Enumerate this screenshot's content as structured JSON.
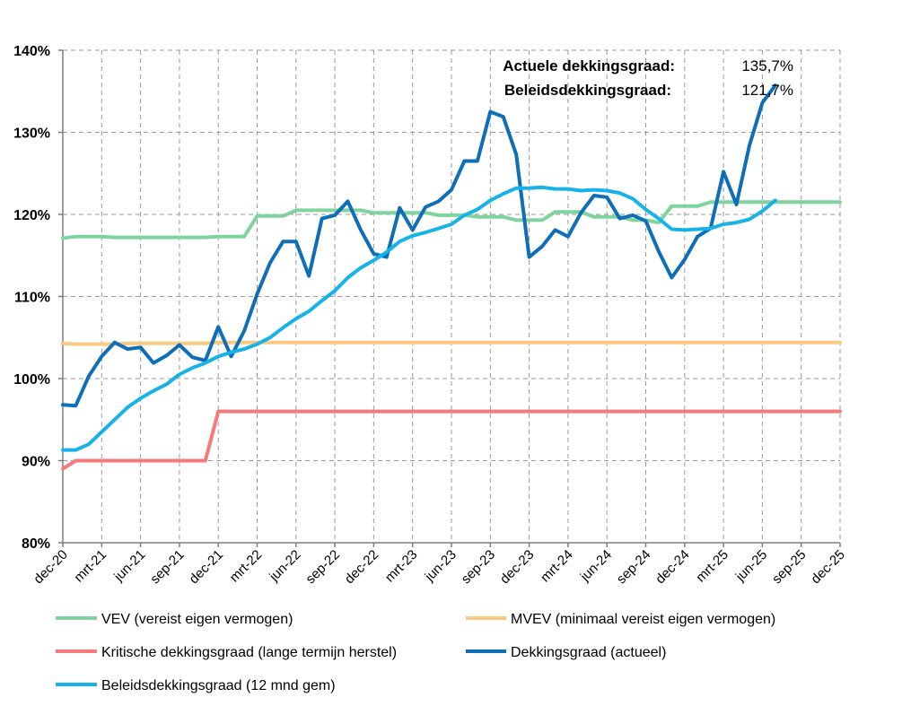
{
  "chart_data": {
    "type": "line",
    "ylim": [
      80,
      140
    ],
    "yticks": [
      "80%",
      "90%",
      "100%",
      "110%",
      "120%",
      "130%",
      "140%"
    ],
    "x_range": [
      0,
      60
    ],
    "x_tick_labels": [
      "dec-20",
      "mrt-21",
      "jun-21",
      "sep-21",
      "dec-21",
      "mrt-22",
      "jun-22",
      "sep-22",
      "dec-22",
      "mrt-23",
      "jun-23",
      "sep-23",
      "dec-23",
      "mrt-24",
      "jun-24",
      "sep-24",
      "dec-24",
      "mrt-25",
      "jun-25",
      "sep-25",
      "dec-25"
    ],
    "grid": true,
    "legend_position": "bottom",
    "annotations": [
      {
        "label": "Actuele dekkingsgraad:",
        "value": "135,7%"
      },
      {
        "label": "Beleidsdekkingsgraad:",
        "value": "121,7%"
      }
    ],
    "series": [
      {
        "name": "VEV (vereist eigen vermogen)",
        "color": "#7fd39c",
        "width": 4,
        "points": [
          [
            0,
            117.1
          ],
          [
            1,
            117.3
          ],
          [
            2,
            117.3
          ],
          [
            3,
            117.3
          ],
          [
            4,
            117.2
          ],
          [
            5,
            117.2
          ],
          [
            6,
            117.2
          ],
          [
            7,
            117.2
          ],
          [
            8,
            117.2
          ],
          [
            9,
            117.2
          ],
          [
            10,
            117.2
          ],
          [
            11,
            117.2
          ],
          [
            12,
            117.3
          ],
          [
            13,
            117.3
          ],
          [
            14,
            117.3
          ],
          [
            15,
            119.8
          ],
          [
            16,
            119.8
          ],
          [
            17,
            119.8
          ],
          [
            18,
            120.5
          ],
          [
            19,
            120.5
          ],
          [
            20,
            120.5
          ],
          [
            21,
            120.5
          ],
          [
            22,
            120.5
          ],
          [
            23,
            120.5
          ],
          [
            24,
            120.2
          ],
          [
            25,
            120.2
          ],
          [
            26,
            120.2
          ],
          [
            27,
            120.2
          ],
          [
            28,
            120.2
          ],
          [
            29,
            119.9
          ],
          [
            30,
            119.9
          ],
          [
            31,
            119.9
          ],
          [
            32,
            119.7
          ],
          [
            33,
            119.7
          ],
          [
            34,
            119.7
          ],
          [
            35,
            119.3
          ],
          [
            36,
            119.3
          ],
          [
            37,
            119.3
          ],
          [
            38,
            120.3
          ],
          [
            39,
            120.3
          ],
          [
            40,
            120.3
          ],
          [
            41,
            119.7
          ],
          [
            42,
            119.7
          ],
          [
            43,
            119.7
          ],
          [
            44,
            119.3
          ],
          [
            45,
            119.3
          ],
          [
            46,
            119.0
          ],
          [
            47,
            121.0
          ],
          [
            48,
            121.0
          ],
          [
            49,
            121.0
          ],
          [
            50,
            121.5
          ],
          [
            51,
            121.5
          ],
          [
            52,
            121.5
          ],
          [
            53,
            121.5
          ],
          [
            54,
            121.5
          ],
          [
            55,
            121.5
          ],
          [
            56,
            121.5
          ],
          [
            57,
            121.5
          ],
          [
            58,
            121.5
          ],
          [
            59,
            121.5
          ],
          [
            60,
            121.5
          ]
        ]
      },
      {
        "name": "MVEV (minimaal vereist eigen vermogen)",
        "color": "#fcc980",
        "width": 4,
        "points": [
          [
            0,
            104.3
          ],
          [
            1,
            104.2
          ],
          [
            2,
            104.2
          ],
          [
            3,
            104.2
          ],
          [
            4,
            104.2
          ],
          [
            5,
            104.3
          ],
          [
            6,
            104.3
          ],
          [
            7,
            104.3
          ],
          [
            8,
            104.3
          ],
          [
            9,
            104.3
          ],
          [
            10,
            104.3
          ],
          [
            11,
            104.3
          ],
          [
            12,
            104.4
          ],
          [
            13,
            104.4
          ],
          [
            14,
            104.4
          ],
          [
            15,
            104.4
          ],
          [
            20,
            104.4
          ],
          [
            30,
            104.4
          ],
          [
            40,
            104.4
          ],
          [
            50,
            104.4
          ],
          [
            60,
            104.4
          ]
        ]
      },
      {
        "name": "Kritische dekkingsgraad (lange termijn herstel)",
        "color": "#f57a7a",
        "width": 4,
        "points": [
          [
            0,
            89.0
          ],
          [
            1,
            90.0
          ],
          [
            2,
            90.0
          ],
          [
            3,
            90.0
          ],
          [
            4,
            90.0
          ],
          [
            5,
            90.0
          ],
          [
            6,
            90.0
          ],
          [
            7,
            90.0
          ],
          [
            8,
            90.0
          ],
          [
            9,
            90.0
          ],
          [
            10,
            90.0
          ],
          [
            11,
            90.0
          ],
          [
            12,
            96.0
          ],
          [
            13,
            96.0
          ],
          [
            14,
            96.0
          ],
          [
            20,
            96.0
          ],
          [
            30,
            96.0
          ],
          [
            40,
            96.0
          ],
          [
            50,
            96.0
          ],
          [
            60,
            96.0
          ]
        ]
      },
      {
        "name": "Dekkingsgraad (actueel)",
        "color": "#0f6eb8",
        "width": 4,
        "points": [
          [
            0,
            96.8
          ],
          [
            1,
            96.7
          ],
          [
            2,
            100.3
          ],
          [
            3,
            102.7
          ],
          [
            4,
            104.4
          ],
          [
            5,
            103.6
          ],
          [
            6,
            103.8
          ],
          [
            7,
            101.9
          ],
          [
            8,
            102.8
          ],
          [
            9,
            104.1
          ],
          [
            10,
            102.6
          ],
          [
            11,
            102.2
          ],
          [
            12,
            106.3
          ],
          [
            13,
            102.7
          ],
          [
            14,
            105.8
          ],
          [
            15,
            110.3
          ],
          [
            16,
            114.1
          ],
          [
            17,
            116.7
          ],
          [
            18,
            116.7
          ],
          [
            19,
            112.5
          ],
          [
            20,
            119.5
          ],
          [
            21,
            119.9
          ],
          [
            22,
            121.6
          ],
          [
            23,
            118.1
          ],
          [
            24,
            115.2
          ],
          [
            25,
            114.8
          ],
          [
            26,
            120.8
          ],
          [
            27,
            118.1
          ],
          [
            28,
            120.9
          ],
          [
            29,
            121.6
          ],
          [
            30,
            123.0
          ],
          [
            31,
            126.5
          ],
          [
            32,
            126.5
          ],
          [
            33,
            132.5
          ],
          [
            34,
            131.9
          ],
          [
            35,
            127.3
          ],
          [
            36,
            114.8
          ],
          [
            37,
            116.1
          ],
          [
            38,
            118.1
          ],
          [
            39,
            117.3
          ],
          [
            40,
            120.2
          ],
          [
            41,
            122.3
          ],
          [
            42,
            122.1
          ],
          [
            43,
            119.5
          ],
          [
            44,
            119.9
          ],
          [
            45,
            119.2
          ],
          [
            46,
            115.5
          ],
          [
            47,
            112.3
          ],
          [
            48,
            114.5
          ],
          [
            49,
            117.3
          ],
          [
            50,
            118.3
          ],
          [
            51,
            125.2
          ],
          [
            52,
            121.2
          ],
          [
            53,
            128.4
          ],
          [
            54,
            133.6
          ],
          [
            55,
            135.7
          ]
        ]
      },
      {
        "name": "Beleidsdekkingsgraad (12 mnd gem)",
        "color": "#16b2e8",
        "width": 4,
        "points": [
          [
            0,
            91.3
          ],
          [
            1,
            91.3
          ],
          [
            2,
            92.0
          ],
          [
            3,
            93.5
          ],
          [
            4,
            95.0
          ],
          [
            5,
            96.5
          ],
          [
            6,
            97.6
          ],
          [
            7,
            98.5
          ],
          [
            8,
            99.3
          ],
          [
            9,
            100.5
          ],
          [
            10,
            101.3
          ],
          [
            11,
            101.9
          ],
          [
            12,
            102.7
          ],
          [
            13,
            103.2
          ],
          [
            14,
            103.6
          ],
          [
            15,
            104.2
          ],
          [
            16,
            105.0
          ],
          [
            17,
            106.2
          ],
          [
            18,
            107.3
          ],
          [
            19,
            108.2
          ],
          [
            20,
            109.5
          ],
          [
            21,
            110.7
          ],
          [
            22,
            112.3
          ],
          [
            23,
            113.5
          ],
          [
            24,
            114.4
          ],
          [
            25,
            115.4
          ],
          [
            26,
            116.7
          ],
          [
            27,
            117.4
          ],
          [
            28,
            117.8
          ],
          [
            29,
            118.3
          ],
          [
            30,
            118.8
          ],
          [
            31,
            119.9
          ],
          [
            32,
            120.6
          ],
          [
            33,
            121.7
          ],
          [
            34,
            122.5
          ],
          [
            35,
            123.2
          ],
          [
            36,
            123.2
          ],
          [
            37,
            123.3
          ],
          [
            38,
            123.1
          ],
          [
            39,
            123.1
          ],
          [
            40,
            122.9
          ],
          [
            41,
            123.0
          ],
          [
            42,
            122.9
          ],
          [
            43,
            122.6
          ],
          [
            44,
            121.9
          ],
          [
            45,
            120.6
          ],
          [
            46,
            119.5
          ],
          [
            47,
            118.2
          ],
          [
            48,
            118.1
          ],
          [
            49,
            118.2
          ],
          [
            50,
            118.3
          ],
          [
            51,
            118.8
          ],
          [
            52,
            119.0
          ],
          [
            53,
            119.4
          ],
          [
            54,
            120.4
          ],
          [
            55,
            121.7
          ]
        ]
      }
    ]
  }
}
